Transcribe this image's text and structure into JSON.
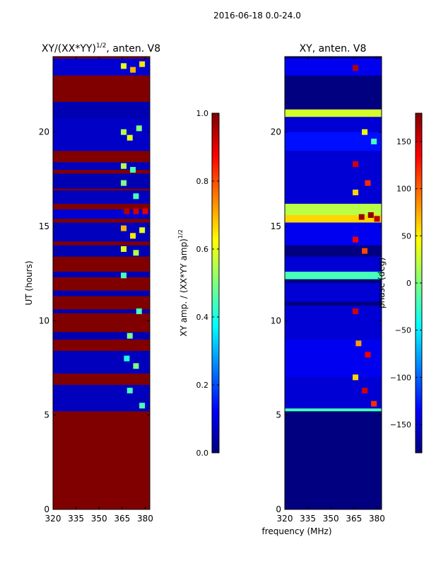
{
  "page_title": "2016-06-18 0.0-24.0",
  "x_shared_label": "frequency (MHz)",
  "chart_data": [
    {
      "type": "heatmap",
      "title_prefix": "XY/(XX*YY)",
      "title_exp": "1/2",
      "title_suffix": ", anten. V8",
      "xlabel": "",
      "ylabel": "UT (hours)",
      "x_range": [
        320,
        383
      ],
      "y_range": [
        0,
        24
      ],
      "x_ticks": [
        320,
        335,
        350,
        365,
        380
      ],
      "y_ticks": [
        0,
        5,
        10,
        15,
        20
      ],
      "colorbar": {
        "range": [
          0.0,
          1.0
        ],
        "ticks": [
          "0.0",
          "0.2",
          "0.4",
          "0.6",
          "0.8",
          "1.0"
        ],
        "label_prefix": "XY amp. / (XX*YY amp)",
        "label_exp": "1/2"
      },
      "background_value": 1.0,
      "bands": [
        {
          "y": [
            23.0,
            23.9
          ],
          "value": 0.08
        },
        {
          "y": [
            20.7,
            21.6
          ],
          "value": 0.05
        },
        {
          "y": [
            19.0,
            20.7
          ],
          "value": 0.07
        },
        {
          "y": [
            18.0,
            18.4
          ],
          "value": 0.06
        },
        {
          "y": [
            17.0,
            17.8
          ],
          "value": 0.05
        },
        {
          "y": [
            16.2,
            16.9
          ],
          "value": 0.06
        },
        {
          "y": [
            15.4,
            15.9
          ],
          "value": 0.08
        },
        {
          "y": [
            14.2,
            15.2
          ],
          "value": 0.06
        },
        {
          "y": [
            13.4,
            14.0
          ],
          "value": 0.05
        },
        {
          "y": [
            12.3,
            12.6
          ],
          "value": 0.05
        },
        {
          "y": [
            11.3,
            11.6
          ],
          "value": 0.05
        },
        {
          "y": [
            10.4,
            10.6
          ],
          "value": 0.05
        },
        {
          "y": [
            9.0,
            9.4
          ],
          "value": 0.05
        },
        {
          "y": [
            7.2,
            8.4
          ],
          "value": 0.06
        },
        {
          "y": [
            5.2,
            6.6
          ],
          "value": 0.06
        }
      ],
      "hot_cells": [
        {
          "x": 366,
          "y": 23.5,
          "value": 0.6
        },
        {
          "x": 372,
          "y": 23.3,
          "value": 0.7
        },
        {
          "x": 378,
          "y": 23.6,
          "value": 0.65
        },
        {
          "x": 366,
          "y": 20.0,
          "value": 0.55
        },
        {
          "x": 370,
          "y": 19.7,
          "value": 0.6
        },
        {
          "x": 376,
          "y": 20.2,
          "value": 0.5
        },
        {
          "x": 366,
          "y": 18.2,
          "value": 0.55
        },
        {
          "x": 372,
          "y": 18.0,
          "value": 0.45
        },
        {
          "x": 366,
          "y": 17.3,
          "value": 0.5
        },
        {
          "x": 374,
          "y": 16.6,
          "value": 0.45
        },
        {
          "x": 368,
          "y": 15.8,
          "value": 0.95
        },
        {
          "x": 374,
          "y": 15.8,
          "value": 0.92
        },
        {
          "x": 380,
          "y": 15.8,
          "value": 0.9
        },
        {
          "x": 366,
          "y": 14.9,
          "value": 0.7
        },
        {
          "x": 372,
          "y": 14.5,
          "value": 0.65
        },
        {
          "x": 378,
          "y": 14.8,
          "value": 0.6
        },
        {
          "x": 366,
          "y": 13.8,
          "value": 0.6
        },
        {
          "x": 374,
          "y": 13.6,
          "value": 0.55
        },
        {
          "x": 366,
          "y": 12.4,
          "value": 0.45
        },
        {
          "x": 376,
          "y": 10.5,
          "value": 0.45
        },
        {
          "x": 370,
          "y": 9.2,
          "value": 0.5
        },
        {
          "x": 368,
          "y": 8.0,
          "value": 0.4
        },
        {
          "x": 374,
          "y": 7.6,
          "value": 0.5
        },
        {
          "x": 370,
          "y": 6.3,
          "value": 0.45
        },
        {
          "x": 378,
          "y": 5.5,
          "value": 0.45
        }
      ]
    },
    {
      "type": "heatmap",
      "title": "XY, anten. V8",
      "xlabel": "frequency (MHz)",
      "ylabel": "",
      "x_range": [
        320,
        383
      ],
      "y_range": [
        0,
        24
      ],
      "x_ticks": [
        320,
        335,
        350,
        365,
        380
      ],
      "y_ticks": [
        0,
        5,
        10,
        15,
        20
      ],
      "colorbar": {
        "range": [
          -180,
          180
        ],
        "ticks": [
          "−150",
          "−100",
          "−50",
          "0",
          "50",
          "100",
          "150"
        ],
        "tick_values": [
          -150,
          -100,
          -50,
          0,
          50,
          100,
          150
        ],
        "label": "phase (deg)"
      },
      "background_value": -180,
      "bands": [
        {
          "y": [
            23.0,
            23.9
          ],
          "value": -140
        },
        {
          "y": [
            20.8,
            21.2
          ],
          "value": 30
        },
        {
          "y": [
            20.0,
            20.8
          ],
          "value": -150
        },
        {
          "y": [
            19.0,
            20.0
          ],
          "value": -130
        },
        {
          "y": [
            16.2,
            19.0
          ],
          "value": -150
        },
        {
          "y": [
            15.6,
            16.2
          ],
          "value": 20
        },
        {
          "y": [
            15.2,
            15.6
          ],
          "value": 60
        },
        {
          "y": [
            14.0,
            15.2
          ],
          "value": -140
        },
        {
          "y": [
            12.6,
            13.4
          ],
          "value": -150
        },
        {
          "y": [
            12.2,
            12.6
          ],
          "value": -20
        },
        {
          "y": [
            11.0,
            12.0
          ],
          "value": -150
        },
        {
          "y": [
            9.0,
            10.8
          ],
          "value": -150
        },
        {
          "y": [
            7.0,
            9.0
          ],
          "value": -140
        },
        {
          "y": [
            5.3,
            7.0
          ],
          "value": -150
        },
        {
          "y": [
            5.2,
            5.35
          ],
          "value": -20
        }
      ],
      "hot_cells": [
        {
          "x": 366,
          "y": 23.4,
          "value": 160
        },
        {
          "x": 372,
          "y": 20.0,
          "value": 40
        },
        {
          "x": 378,
          "y": 19.5,
          "value": -20
        },
        {
          "x": 366,
          "y": 18.3,
          "value": 150
        },
        {
          "x": 374,
          "y": 17.3,
          "value": 120
        },
        {
          "x": 366,
          "y": 16.8,
          "value": 60
        },
        {
          "x": 370,
          "y": 15.5,
          "value": 170
        },
        {
          "x": 376,
          "y": 15.6,
          "value": 175
        },
        {
          "x": 380,
          "y": 15.4,
          "value": 160
        },
        {
          "x": 366,
          "y": 14.3,
          "value": 140
        },
        {
          "x": 372,
          "y": 13.7,
          "value": 110
        },
        {
          "x": 366,
          "y": 10.5,
          "value": 150
        },
        {
          "x": 368,
          "y": 8.8,
          "value": 80
        },
        {
          "x": 374,
          "y": 8.2,
          "value": 140
        },
        {
          "x": 366,
          "y": 7.0,
          "value": 60
        },
        {
          "x": 372,
          "y": 6.3,
          "value": 150
        },
        {
          "x": 378,
          "y": 5.6,
          "value": 120
        }
      ]
    }
  ]
}
